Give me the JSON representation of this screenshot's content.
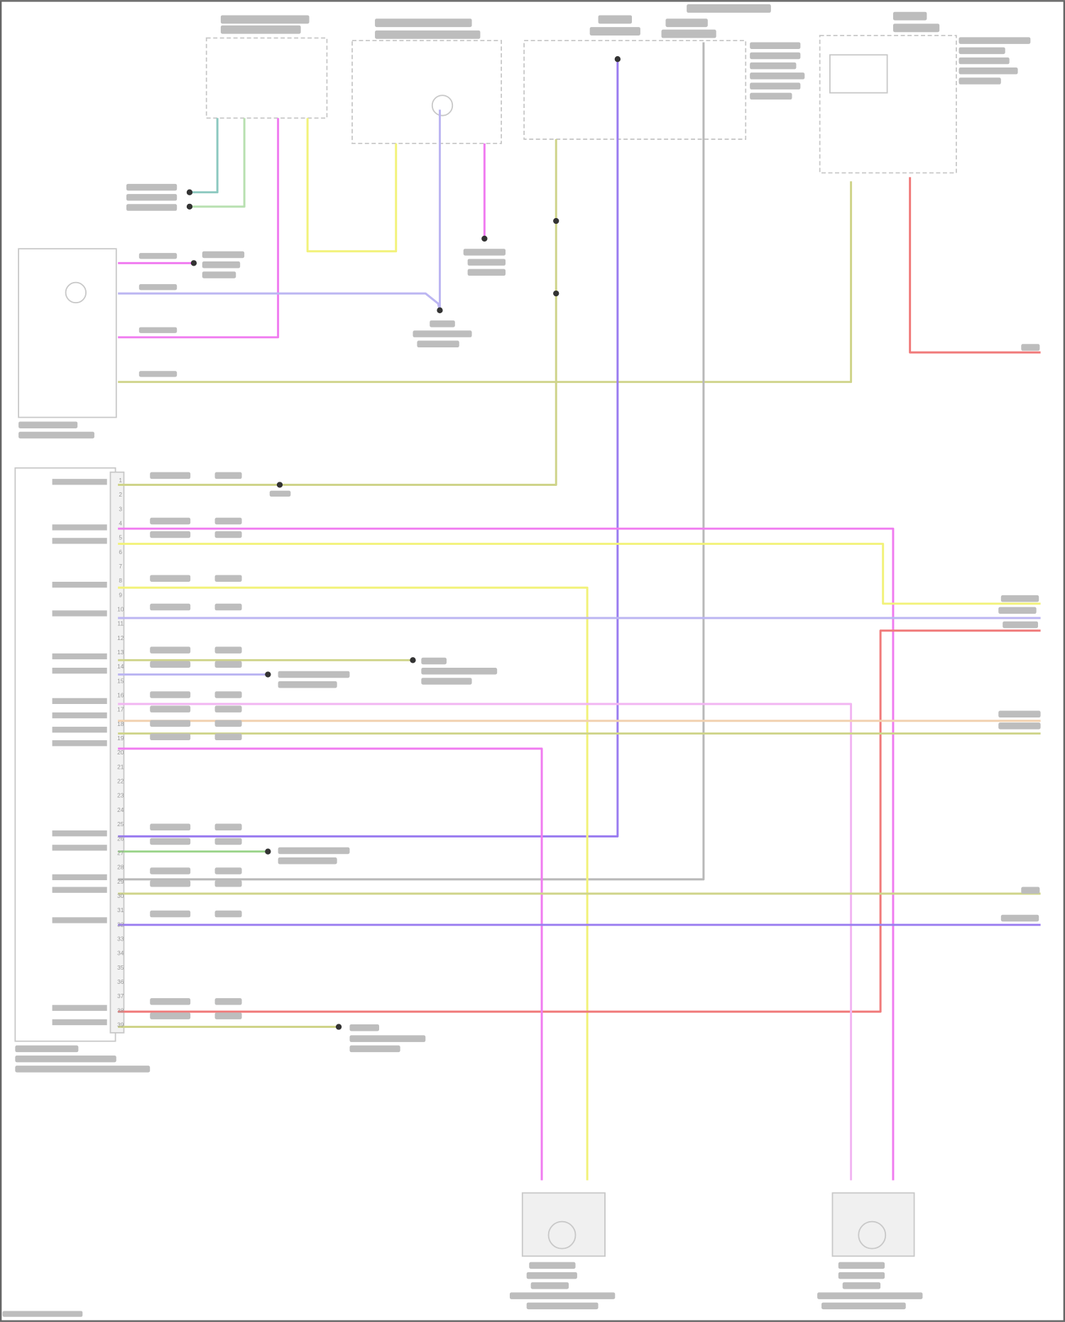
{
  "diagram": {
    "type": "wiring schematic",
    "text_legibility": "labels too blurred to read",
    "module_pin_numbers": [
      "1",
      "2",
      "3",
      "4",
      "5",
      "6",
      "7",
      "8",
      "9",
      "10",
      "11",
      "12",
      "13",
      "14",
      "15",
      "16",
      "17",
      "18",
      "19",
      "20",
      "21",
      "22",
      "23",
      "24",
      "25",
      "26",
      "27",
      "28",
      "29",
      "30",
      "31",
      "32",
      "33",
      "34",
      "35",
      "36",
      "37",
      "38",
      "39"
    ],
    "colors": {
      "pink": "#f07cf0",
      "light_pink": "#f2b6f2",
      "yellow": "#f2f27a",
      "olive": "#cfd48a",
      "purple": "#9a7cf0",
      "lavender": "#bcb6f2",
      "red": "#f07a7a",
      "teal": "#8cc9c0",
      "light_green": "#b8e0b0",
      "gray": "#b8b8b8",
      "peach": "#f2d2b0",
      "green": "#9ad48a",
      "border": "#555555"
    }
  }
}
